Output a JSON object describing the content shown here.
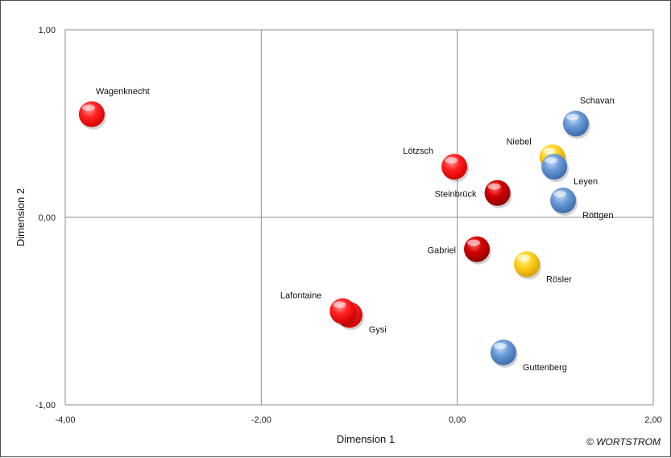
{
  "chart_data": {
    "type": "scatter",
    "xlabel": "Dimension 1",
    "ylabel": "Dimension 2",
    "xlim": [
      -4,
      2
    ],
    "ylim": [
      -1,
      1
    ],
    "x_ticks": [
      "-4,00",
      "-2,00",
      "0,00",
      "2,00"
    ],
    "x_tick_values": [
      -4,
      -2,
      0,
      2
    ],
    "y_ticks": [
      "1,00",
      "0,00",
      "-1,00"
    ],
    "y_tick_values": [
      1,
      0,
      -1
    ],
    "grid": true,
    "colors": {
      "red": "#ff1a1a",
      "darkred": "#c80000",
      "blue": "#5b8fd1",
      "yellow": "#ffd21e"
    },
    "points": [
      {
        "label": "Wagenknecht",
        "x": -3.73,
        "y": 0.55,
        "color": "red",
        "label_pos": "above-right"
      },
      {
        "label": "Lötzsch",
        "x": -0.03,
        "y": 0.27,
        "color": "red",
        "label_pos": "above-left"
      },
      {
        "label": "Steinbrück",
        "x": 0.41,
        "y": 0.13,
        "color": "darkred",
        "label_pos": "left"
      },
      {
        "label": "Gabriel",
        "x": 0.2,
        "y": -0.17,
        "color": "darkred",
        "label_pos": "left"
      },
      {
        "label": "Gysi",
        "x": -1.1,
        "y": -0.52,
        "color": "red",
        "label_pos": "below-right"
      },
      {
        "label": "Lafontaine",
        "x": -1.17,
        "y": -0.5,
        "color": "red",
        "label_pos": "above-left"
      },
      {
        "label": "Niebel",
        "x": 0.97,
        "y": 0.32,
        "color": "yellow",
        "label_pos": "above-left"
      },
      {
        "label": "Rösler",
        "x": 0.71,
        "y": -0.25,
        "color": "yellow",
        "label_pos": "below-right"
      },
      {
        "label": "Schavan",
        "x": 1.21,
        "y": 0.5,
        "color": "blue",
        "label_pos": "above-right"
      },
      {
        "label": "Leyen",
        "x": 0.99,
        "y": 0.27,
        "color": "blue",
        "label_pos": "below-right"
      },
      {
        "label": "Röttgen",
        "x": 1.08,
        "y": 0.09,
        "color": "blue",
        "label_pos": "below-right"
      },
      {
        "label": "Guttenberg",
        "x": 0.47,
        "y": -0.72,
        "color": "blue",
        "label_pos": "below-right"
      }
    ]
  },
  "copyright": "© WORTSTROM"
}
